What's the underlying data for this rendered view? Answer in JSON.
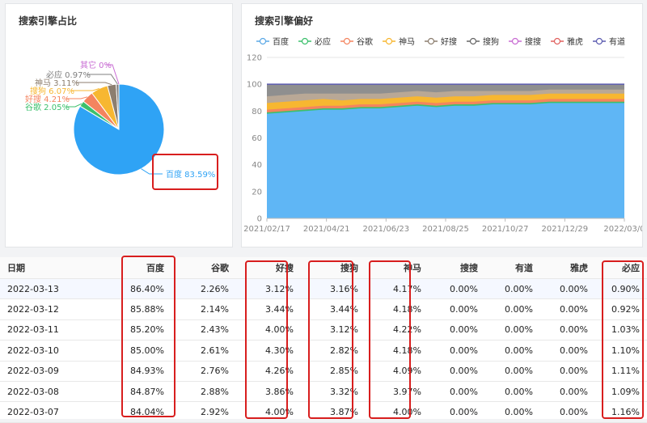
{
  "pie_panel": {
    "title": "搜索引擎占比"
  },
  "area_panel": {
    "title": "搜索引擎偏好"
  },
  "chart_data": [
    {
      "type": "pie",
      "title": "搜索引擎占比",
      "slices": [
        {
          "name": "百度",
          "label": "百度 83.59%",
          "value": 83.59,
          "color": "#2fa3f5"
        },
        {
          "name": "谷歌",
          "label": "谷歌 2.05%",
          "value": 2.05,
          "color": "#3cc06c"
        },
        {
          "name": "好搜",
          "label": "好搜 4.21%",
          "value": 4.21,
          "color": "#f4845f"
        },
        {
          "name": "搜狗",
          "label": "搜狗 6.07%",
          "value": 6.07,
          "color": "#f7b731"
        },
        {
          "name": "神马",
          "label": "神马 3.11%",
          "value": 3.11,
          "color": "#8c7e6f"
        },
        {
          "name": "必应",
          "label": "必应 0.97%",
          "value": 0.97,
          "color": "#7f7f7f"
        },
        {
          "name": "其它",
          "label": "其它 0%",
          "value": 0.0,
          "color": "#c86bd3"
        }
      ]
    },
    {
      "type": "area",
      "title": "搜索引擎偏好",
      "legend": [
        {
          "name": "百度",
          "color": "#5aa8e6"
        },
        {
          "name": "必应",
          "color": "#3cc06c"
        },
        {
          "name": "谷歌",
          "color": "#f4845f"
        },
        {
          "name": "神马",
          "color": "#f7b731"
        },
        {
          "name": "好搜",
          "color": "#8c7e6f"
        },
        {
          "name": "搜狗",
          "color": "#666666"
        },
        {
          "name": "搜搜",
          "color": "#c86bd3"
        },
        {
          "name": "雅虎",
          "color": "#e0605e"
        },
        {
          "name": "有道",
          "color": "#5b5bb0"
        }
      ],
      "legend_position": "top",
      "x_ticks": [
        "2021/02/17",
        "2021/04/21",
        "2021/06/23",
        "2021/08/25",
        "2021/10/27",
        "2021/12/29",
        "2022/03/0"
      ],
      "ylim": [
        0,
        120
      ],
      "y_ticks": [
        0,
        20,
        40,
        60,
        80,
        100,
        120
      ],
      "stacked_series_approx": [
        {
          "name": "百度",
          "color": "#5fb6f5",
          "values": [
            78,
            79,
            80,
            81,
            81,
            82,
            82,
            83,
            84,
            83,
            84,
            84,
            85,
            85,
            85,
            86,
            86,
            86,
            86,
            86
          ]
        },
        {
          "name": "必应",
          "color": "#3cc06c",
          "values": [
            1,
            1,
            1,
            1,
            1,
            1,
            1,
            1,
            1,
            1,
            1,
            1,
            1,
            1,
            1,
            1,
            1,
            1,
            1,
            1
          ]
        },
        {
          "name": "谷歌",
          "color": "#f4845f",
          "values": [
            2,
            2,
            2,
            2,
            2,
            2,
            2,
            2,
            2,
            2,
            2,
            2,
            2,
            2,
            2,
            2,
            2,
            2,
            2,
            2
          ]
        },
        {
          "name": "神马",
          "color": "#f7b731",
          "values": [
            5,
            5,
            5,
            5,
            4,
            4,
            4,
            4,
            4,
            4,
            4,
            4,
            4,
            4,
            4,
            4,
            4,
            4,
            4,
            4
          ]
        },
        {
          "name": "好搜",
          "color": "#b9a896",
          "values": [
            5,
            5,
            5,
            4,
            5,
            4,
            4,
            4,
            4,
            4,
            4,
            4,
            3,
            3,
            3,
            3,
            3,
            3,
            3,
            3
          ]
        },
        {
          "name": "搜狗",
          "color": "#8f8f8f",
          "values": [
            9,
            8,
            7,
            7,
            7,
            7,
            7,
            6,
            5,
            6,
            5,
            5,
            5,
            5,
            5,
            4,
            4,
            4,
            4,
            4
          ]
        }
      ]
    },
    {
      "type": "table",
      "columns": [
        "日期",
        "百度",
        "谷歌",
        "好搜",
        "搜狗",
        "神马",
        "搜搜",
        "有道",
        "雅虎",
        "必应"
      ],
      "rows": [
        [
          "2022-03-13",
          "86.40%",
          "2.26%",
          "3.12%",
          "3.16%",
          "4.17%",
          "0.00%",
          "0.00%",
          "0.00%",
          "0.90%"
        ],
        [
          "2022-03-12",
          "85.88%",
          "2.14%",
          "3.44%",
          "3.44%",
          "4.18%",
          "0.00%",
          "0.00%",
          "0.00%",
          "0.92%"
        ],
        [
          "2022-03-11",
          "85.20%",
          "2.43%",
          "4.00%",
          "3.12%",
          "4.22%",
          "0.00%",
          "0.00%",
          "0.00%",
          "1.03%"
        ],
        [
          "2022-03-10",
          "85.00%",
          "2.61%",
          "4.30%",
          "2.82%",
          "4.18%",
          "0.00%",
          "0.00%",
          "0.00%",
          "1.10%"
        ],
        [
          "2022-03-09",
          "84.93%",
          "2.76%",
          "4.26%",
          "2.85%",
          "4.09%",
          "0.00%",
          "0.00%",
          "0.00%",
          "1.11%"
        ],
        [
          "2022-03-08",
          "84.87%",
          "2.88%",
          "3.86%",
          "3.32%",
          "3.97%",
          "0.00%",
          "0.00%",
          "0.00%",
          "1.09%"
        ],
        [
          "2022-03-07",
          "84.04%",
          "2.92%",
          "4.00%",
          "3.87%",
          "4.00%",
          "0.00%",
          "0.00%",
          "0.00%",
          "1.16%"
        ]
      ]
    }
  ]
}
